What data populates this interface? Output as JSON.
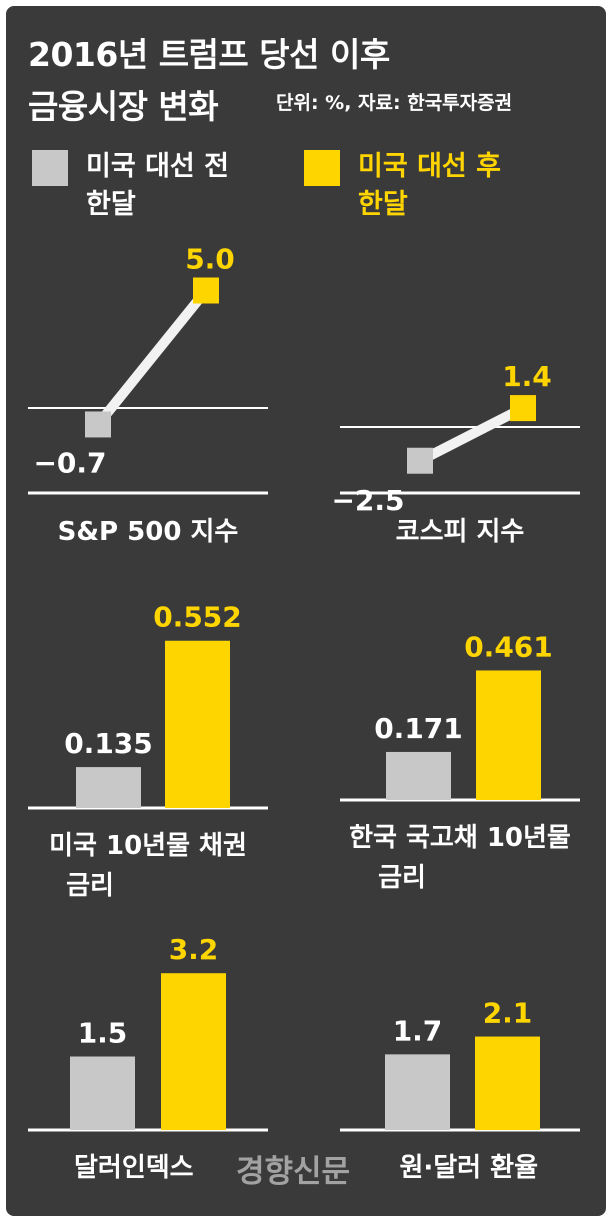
{
  "title_line1": "2016년 트럼프 당선 이후",
  "title_line2": "금융시장 변화",
  "unit_source": "단위: %, 자료: 한국투자증권",
  "legend": [
    {
      "line1": "미국 대선 전",
      "line2": "한달",
      "color": "#c8c8c8"
    },
    {
      "line1": "미국 대선 후",
      "line2": "한달",
      "color": "#ffd500"
    }
  ],
  "watermark": "경향신문",
  "chart_data": [
    {
      "type": "line",
      "label": "S&P 500 지수",
      "categories": [
        "미국 대선 전 한달",
        "미국 대선 후 한달"
      ],
      "values": [
        -0.7,
        5.0
      ],
      "value_labels": [
        "−0.7",
        "5.0"
      ]
    },
    {
      "type": "line",
      "label": "코스피 지수",
      "categories": [
        "미국 대선 전 한달",
        "미국 대선 후 한달"
      ],
      "values": [
        -2.5,
        1.4
      ],
      "value_labels": [
        "−2.5",
        "1.4"
      ]
    },
    {
      "type": "bar",
      "label_line1": "미국 10년물 채권",
      "label_line2": "금리",
      "categories": [
        "미국 대선 전 한달",
        "미국 대선 후 한달"
      ],
      "values": [
        0.135,
        0.552
      ],
      "value_labels": [
        "0.135",
        "0.552"
      ]
    },
    {
      "type": "bar",
      "label_line1": "한국 국고채 10년물",
      "label_line2": "금리",
      "categories": [
        "미국 대선 전 한달",
        "미국 대선 후 한달"
      ],
      "values": [
        0.171,
        0.461
      ],
      "value_labels": [
        "0.171",
        "0.461"
      ]
    },
    {
      "type": "bar",
      "label": "달러인덱스",
      "categories": [
        "미국 대선 전 한달",
        "미국 대선 후 한달"
      ],
      "values": [
        1.5,
        3.2
      ],
      "value_labels": [
        "1.5",
        "3.2"
      ]
    },
    {
      "type": "bar",
      "label": "원·달러 환율",
      "categories": [
        "미국 대선 전 한달",
        "미국 대선 후 한달"
      ],
      "values": [
        1.7,
        2.1
      ],
      "value_labels": [
        "1.7",
        "2.1"
      ]
    }
  ]
}
